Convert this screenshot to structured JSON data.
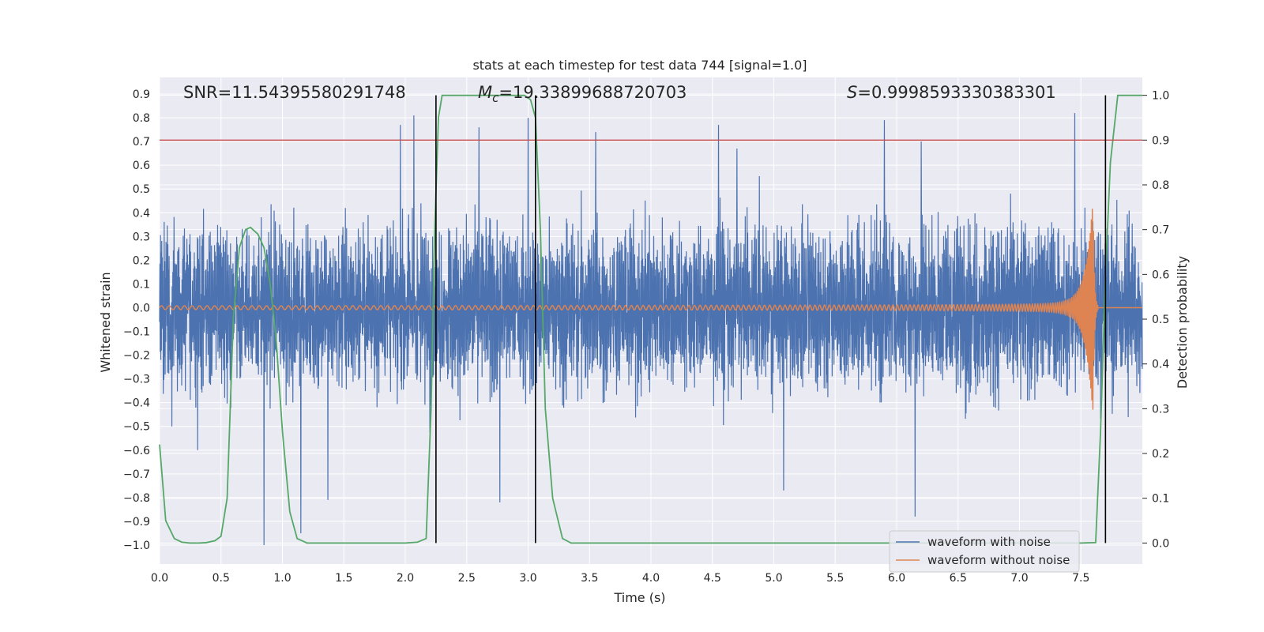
{
  "chart_data": {
    "type": "line",
    "title": "stats at each timestep for test data 744 [signal=1.0]",
    "xlabel": "Time (s)",
    "ylabel": "Whitened strain",
    "y2label": "Detection probability",
    "xlim": [
      0.0,
      8.0
    ],
    "ylim": [
      -1.08,
      0.97
    ],
    "y2lim": [
      -0.047,
      1.04
    ],
    "xticks": [
      0.0,
      0.5,
      1.0,
      1.5,
      2.0,
      2.5,
      3.0,
      3.5,
      4.0,
      4.5,
      5.0,
      5.5,
      6.0,
      6.5,
      7.0,
      7.5
    ],
    "xtick_labels": [
      "0.0",
      "0.5",
      "1.0",
      "1.5",
      "2.0",
      "2.5",
      "3.0",
      "3.5",
      "4.0",
      "4.5",
      "5.0",
      "5.5",
      "6.0",
      "6.5",
      "7.0",
      "7.5"
    ],
    "yticks": [
      0.9,
      0.8,
      0.7,
      0.6,
      0.5,
      0.4,
      0.3,
      0.2,
      0.1,
      0.0,
      -0.1,
      -0.2,
      -0.3,
      -0.4,
      -0.5,
      -0.6,
      -0.7,
      -0.8,
      -0.9,
      -1.0
    ],
    "ytick_labels": [
      "0.9",
      "0.8",
      "0.7",
      "0.6",
      "0.5",
      "0.4",
      "0.3",
      "0.2",
      "0.1",
      "0.0",
      "−0.1",
      "−0.2",
      "−0.3",
      "−0.4",
      "−0.5",
      "−0.6",
      "−0.7",
      "−0.8",
      "−0.9",
      "−1.0"
    ],
    "y2ticks": [
      1.0,
      0.9,
      0.8,
      0.7,
      0.6,
      0.5,
      0.4,
      0.3,
      0.2,
      0.1,
      0.0
    ],
    "y2tick_labels": [
      "1.0",
      "0.9",
      "0.8",
      "0.7",
      "0.6",
      "0.5",
      "0.4",
      "0.3",
      "0.2",
      "0.1",
      "0.0"
    ],
    "stats": {
      "snr": "SNR=11.54395580291748",
      "mc_symbol": "M",
      "mc_sub": "c",
      "mc_value": "=19.33899688720703",
      "s_symbol": "S",
      "s_value": "=0.9998593330383301"
    },
    "threshold": {
      "axis": "y2",
      "value": 0.9,
      "color": "#c44e52"
    },
    "vertical_markers": [
      2.25,
      3.06,
      7.7
    ],
    "noise": {
      "amplitude_typical": 0.3,
      "peaks": [
        {
          "t": 0.85,
          "v": -1.0
        },
        {
          "t": 1.15,
          "v": -0.95
        },
        {
          "t": 1.37,
          "v": -0.81
        },
        {
          "t": 1.96,
          "v": 0.77
        },
        {
          "t": 2.07,
          "v": 0.81
        },
        {
          "t": 2.6,
          "v": 0.76
        },
        {
          "t": 2.77,
          "v": -0.82
        },
        {
          "t": 3.0,
          "v": 0.8
        },
        {
          "t": 3.55,
          "v": 0.74
        },
        {
          "t": 4.55,
          "v": 0.77
        },
        {
          "t": 5.08,
          "v": -0.77
        },
        {
          "t": 5.9,
          "v": 0.79
        },
        {
          "t": 6.15,
          "v": -0.88
        },
        {
          "t": 7.45,
          "v": 0.82
        },
        {
          "t": 0.1,
          "v": -0.5
        },
        {
          "t": 0.31,
          "v": -0.6
        },
        {
          "t": 4.7,
          "v": 0.67
        },
        {
          "t": 6.2,
          "v": 0.7
        }
      ]
    },
    "series": [
      {
        "name": "waveform with noise",
        "axis": "y",
        "color": "#4c72b0",
        "kind": "noise"
      },
      {
        "name": "waveform without noise",
        "axis": "y",
        "color": "#dd8452",
        "kind": "chirp",
        "t_merger": 7.6,
        "amp_start": 0.008,
        "amp_peak": 0.43,
        "freq_start_hz": 16
      },
      {
        "name": "detection probability",
        "axis": "y2",
        "color": "#55a868",
        "kind": "line",
        "x": [
          0.0,
          0.05,
          0.12,
          0.18,
          0.25,
          0.32,
          0.38,
          0.45,
          0.5,
          0.55,
          0.6,
          0.65,
          0.7,
          0.74,
          0.8,
          0.85,
          0.9,
          0.95,
          1.0,
          1.06,
          1.12,
          1.2,
          1.5,
          2.0,
          2.1,
          2.17,
          2.21,
          2.24,
          2.27,
          2.3,
          2.35,
          2.5,
          2.9,
          2.97,
          3.02,
          3.06,
          3.1,
          3.14,
          3.2,
          3.28,
          3.35,
          4.0,
          5.0,
          6.0,
          7.0,
          7.5,
          7.62,
          7.66,
          7.7,
          7.74,
          7.8,
          8.0
        ],
        "y": [
          0.22,
          0.05,
          0.01,
          0.002,
          0.0,
          0.0,
          0.001,
          0.005,
          0.015,
          0.1,
          0.5,
          0.66,
          0.7,
          0.705,
          0.69,
          0.66,
          0.58,
          0.45,
          0.25,
          0.07,
          0.01,
          0.0,
          0.0,
          0.0,
          0.002,
          0.01,
          0.3,
          0.7,
          0.95,
          1.0,
          1.0,
          1.0,
          1.0,
          1.0,
          0.99,
          0.95,
          0.7,
          0.3,
          0.1,
          0.01,
          0.0,
          0.0,
          0.0,
          0.0,
          0.0,
          0.0,
          0.001,
          0.25,
          0.6,
          0.85,
          1.0,
          1.0
        ]
      }
    ],
    "legend": {
      "location": "lower-right",
      "entries": [
        "waveform with noise",
        "waveform without noise"
      ]
    }
  }
}
